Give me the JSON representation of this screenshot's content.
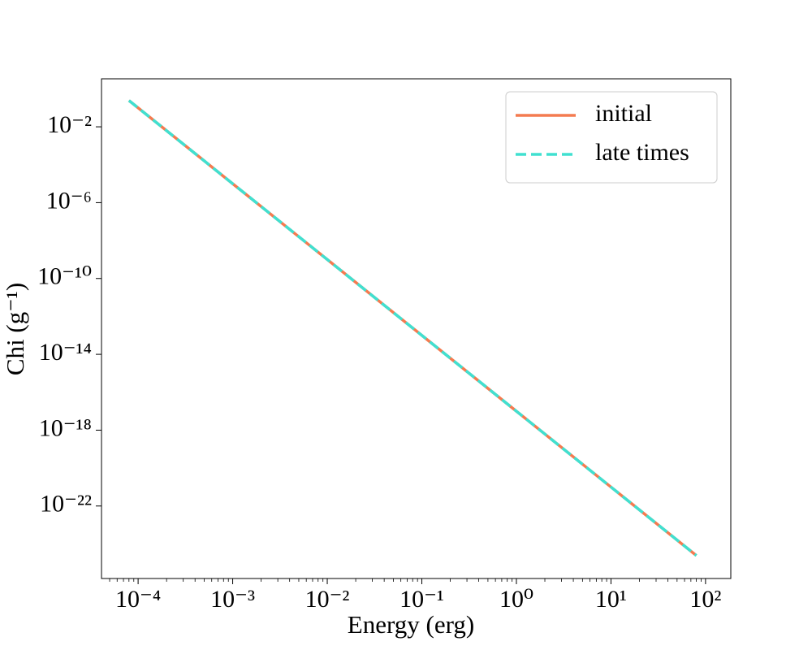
{
  "chart_data": {
    "type": "line",
    "xlabel": "Energy (erg)",
    "ylabel": "Chi (g⁻¹)",
    "log_x": true,
    "log_y": true,
    "x": [
      8e-05,
      0.0001,
      0.001,
      0.01,
      0.1,
      1,
      10,
      80
    ],
    "series": [
      {
        "name": "initial",
        "color": "#f47b50",
        "style": "solid",
        "values": [
          0.244,
          0.1,
          1e-05,
          1e-09,
          1e-13,
          1e-17,
          1e-21,
          2.44e-25
        ]
      },
      {
        "name": "late times",
        "color": "#40e0d0",
        "style": "dashed",
        "values": [
          0.244,
          0.1,
          1e-05,
          1e-09,
          1e-13,
          1e-17,
          1e-21,
          2.44e-25
        ]
      }
    ],
    "xlim": [
      4.1e-05,
      185
    ],
    "ylim": [
      1.5e-26,
      3.4
    ],
    "xticks": [
      {
        "value": 0.0001,
        "label": "10⁻⁴"
      },
      {
        "value": 0.001,
        "label": "10⁻³"
      },
      {
        "value": 0.01,
        "label": "10⁻²"
      },
      {
        "value": 0.1,
        "label": "10⁻¹"
      },
      {
        "value": 1,
        "label": "10⁰"
      },
      {
        "value": 10,
        "label": "10¹"
      },
      {
        "value": 100,
        "label": "10²"
      }
    ],
    "yticks": [
      {
        "value": 1e-22,
        "label": "10⁻²²"
      },
      {
        "value": 1e-18,
        "label": "10⁻¹⁸"
      },
      {
        "value": 1e-14,
        "label": "10⁻¹⁴"
      },
      {
        "value": 1e-10,
        "label": "10⁻¹⁰"
      },
      {
        "value": 1e-06,
        "label": "10⁻⁶"
      },
      {
        "value": 0.01,
        "label": "10⁻²"
      }
    ],
    "grid": false,
    "legend": "upper right"
  }
}
